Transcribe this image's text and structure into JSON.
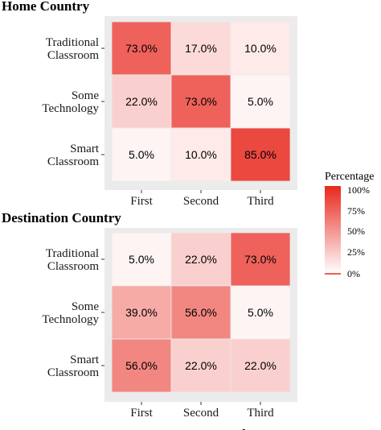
{
  "chart_data": [
    {
      "type": "heatmap",
      "title": "Home Country",
      "x_categories": [
        "First",
        "Second",
        "Third"
      ],
      "y_categories": [
        "Traditional\nClassroom",
        "Some\nTechnology",
        "Smart\nClassroom"
      ],
      "values": [
        [
          73.0,
          17.0,
          10.0
        ],
        [
          22.0,
          73.0,
          5.0
        ],
        [
          5.0,
          10.0,
          85.0
        ]
      ],
      "labels": [
        [
          "73.0%",
          "17.0%",
          "10.0%"
        ],
        [
          "22.0%",
          "73.0%",
          "5.0%"
        ],
        [
          "5.0%",
          "10.0%",
          "85.0%"
        ]
      ]
    },
    {
      "type": "heatmap",
      "title": "Destination Country",
      "x_categories": [
        "First",
        "Second",
        "Third"
      ],
      "y_categories": [
        "Traditional\nClassroom",
        "Some\nTechnology",
        "Smart\nClassroom"
      ],
      "values": [
        [
          5.0,
          22.0,
          73.0
        ],
        [
          39.0,
          56.0,
          5.0
        ],
        [
          56.0,
          22.0,
          22.0
        ]
      ],
      "labels": [
        [
          "5.0%",
          "22.0%",
          "73.0%"
        ],
        [
          "39.0%",
          "56.0%",
          "5.0%"
        ],
        [
          "56.0%",
          "22.0%",
          "22.0%"
        ]
      ]
    }
  ],
  "legend": {
    "title": "Percentage",
    "ticks": [
      "100%",
      "75%",
      "50%",
      "25%",
      "0%"
    ],
    "colors": {
      "low": "#ffffff",
      "high": "#e8281e"
    }
  },
  "x_axis_title": "Frequency Rank",
  "colors": {
    "panel_bg": "#ebebeb",
    "low": "#ffffff",
    "high": "#e8281e"
  }
}
